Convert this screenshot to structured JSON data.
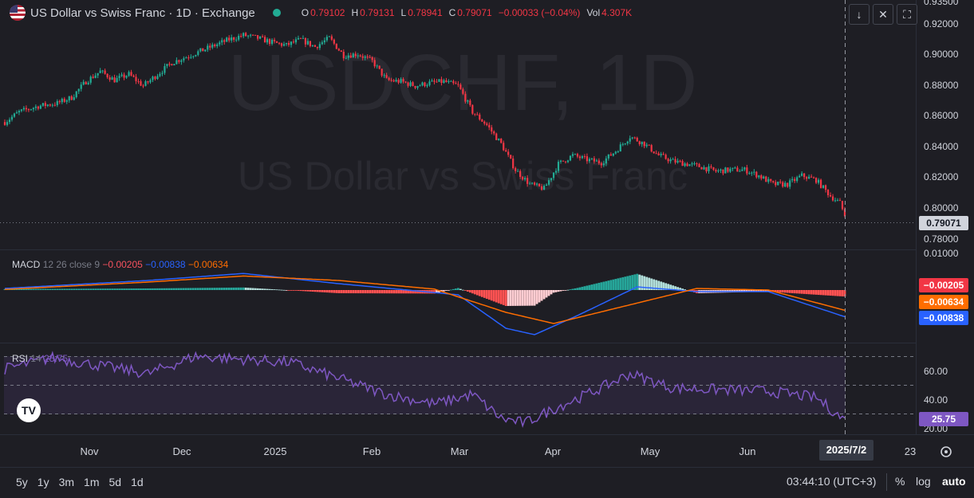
{
  "header": {
    "title": "US Dollar vs Swiss Franc · 1D · Exchange",
    "ohlc": [
      {
        "key": "O",
        "value": "0.79102"
      },
      {
        "key": "H",
        "value": "0.79131"
      },
      {
        "key": "L",
        "value": "0.78941"
      },
      {
        "key": "C",
        "value": "0.79071"
      },
      {
        "key": "",
        "value": "−0.00033 (−0.04%)"
      }
    ],
    "vol_label": "Vol",
    "vol_value": "4.307K"
  },
  "watermark": {
    "symbol": "USDCHF, 1D",
    "name": "US Dollar vs Swiss Franc"
  },
  "toolbar_icons": [
    "arrow-down-icon",
    "collapse-icon",
    "fullscreen-icon"
  ],
  "macd": {
    "label": "MACD",
    "params": "12 26 close 9",
    "hist": "−0.00205",
    "macd": "−0.00838",
    "signal": "−0.00634"
  },
  "rsi": {
    "label": "RSI",
    "params": "14",
    "value": "25.75"
  },
  "price_labels": {
    "last": "0.79071",
    "macd_hist": "−0.00205",
    "macd_signal": "−0.00634",
    "macd_line": "−0.00838",
    "rsi": "25.75"
  },
  "axis": {
    "price_ticks": [
      "0.93500",
      "0.92000",
      "0.90000",
      "0.88000",
      "0.86000",
      "0.84000",
      "0.82000",
      "0.80000",
      "0.78000"
    ],
    "macd_ticks": [
      "0.01000"
    ],
    "rsi_ticks": [
      "60.00",
      "40.00",
      "20.00"
    ],
    "time_ticks": [
      "Nov",
      "Dec",
      "2025",
      "Feb",
      "Mar",
      "Apr",
      "May",
      "Jun",
      "23"
    ],
    "crosshair_date": "2025/7/2"
  },
  "bottom": {
    "ranges": [
      "5y",
      "1y",
      "3m",
      "1m",
      "5d",
      "1d"
    ],
    "clock": "03:44:10 (UTC+3)",
    "pct": "%",
    "log": "log",
    "auto": "auto"
  },
  "colors": {
    "up": "#22ab94",
    "down": "#f23645",
    "macd": "#2962ff",
    "signal": "#ff6d00",
    "rsi": "#7e57c2",
    "bg": "#1e1e24"
  },
  "chart_data": {
    "type": "candlestick",
    "title": "US Dollar vs Swiss Franc · 1D · Exchange",
    "price_close_anchors": [
      [
        0,
        0.855
      ],
      [
        6,
        0.862
      ],
      [
        14,
        0.866
      ],
      [
        22,
        0.868
      ],
      [
        28,
        0.872
      ],
      [
        34,
        0.883
      ],
      [
        40,
        0.89
      ],
      [
        46,
        0.884
      ],
      [
        52,
        0.888
      ],
      [
        58,
        0.88
      ],
      [
        64,
        0.888
      ],
      [
        70,
        0.896
      ],
      [
        76,
        0.9
      ],
      [
        82,
        0.904
      ],
      [
        88,
        0.908
      ],
      [
        94,
        0.912
      ],
      [
        100,
        0.915
      ],
      [
        106,
        0.913
      ],
      [
        112,
        0.91
      ],
      [
        118,
        0.908
      ],
      [
        124,
        0.912
      ],
      [
        130,
        0.907
      ],
      [
        136,
        0.913
      ],
      [
        142,
        0.901
      ],
      [
        148,
        0.902
      ],
      [
        154,
        0.897
      ],
      [
        160,
        0.884
      ],
      [
        166,
        0.883
      ],
      [
        172,
        0.88
      ],
      [
        178,
        0.882
      ],
      [
        184,
        0.883
      ],
      [
        190,
        0.88
      ],
      [
        196,
        0.862
      ],
      [
        202,
        0.853
      ],
      [
        208,
        0.84
      ],
      [
        214,
        0.822
      ],
      [
        220,
        0.812
      ],
      [
        226,
        0.809
      ],
      [
        232,
        0.826
      ],
      [
        238,
        0.832
      ],
      [
        244,
        0.829
      ],
      [
        250,
        0.827
      ],
      [
        256,
        0.835
      ],
      [
        262,
        0.845
      ],
      [
        268,
        0.84
      ],
      [
        274,
        0.832
      ],
      [
        280,
        0.828
      ],
      [
        286,
        0.826
      ],
      [
        292,
        0.824
      ],
      [
        298,
        0.821
      ],
      [
        304,
        0.822
      ],
      [
        310,
        0.822
      ],
      [
        316,
        0.818
      ],
      [
        322,
        0.812
      ],
      [
        328,
        0.812
      ],
      [
        334,
        0.818
      ],
      [
        340,
        0.815
      ],
      [
        346,
        0.804
      ],
      [
        350,
        0.799
      ],
      [
        352,
        0.7907
      ]
    ],
    "macd_anchors": [
      [
        0,
        0.0005
      ],
      [
        60,
        0.003
      ],
      [
        100,
        0.0052
      ],
      [
        140,
        0.002
      ],
      [
        190,
        -0.0015
      ],
      [
        210,
        -0.012
      ],
      [
        222,
        -0.014
      ],
      [
        240,
        -0.008
      ],
      [
        265,
        0.001
      ],
      [
        290,
        -0.0005
      ],
      [
        320,
        -0.0005
      ],
      [
        352,
        -0.00838
      ]
    ],
    "signal_anchors": [
      [
        0,
        0.0002
      ],
      [
        60,
        0.0025
      ],
      [
        100,
        0.0044
      ],
      [
        140,
        0.003
      ],
      [
        180,
        0.0003
      ],
      [
        210,
        -0.007
      ],
      [
        230,
        -0.0105
      ],
      [
        260,
        -0.005
      ],
      [
        290,
        0.0005
      ],
      [
        320,
        0.0
      ],
      [
        352,
        -0.00634
      ]
    ],
    "rsi_anchors": [
      [
        0,
        58
      ],
      [
        20,
        65
      ],
      [
        40,
        60
      ],
      [
        60,
        55
      ],
      [
        80,
        66
      ],
      [
        100,
        64
      ],
      [
        120,
        62
      ],
      [
        140,
        52
      ],
      [
        160,
        42
      ],
      [
        180,
        36
      ],
      [
        196,
        42
      ],
      [
        208,
        27
      ],
      [
        218,
        24
      ],
      [
        230,
        33
      ],
      [
        250,
        46
      ],
      [
        262,
        55
      ],
      [
        280,
        46
      ],
      [
        300,
        45
      ],
      [
        320,
        44
      ],
      [
        340,
        40
      ],
      [
        352,
        25.75
      ]
    ],
    "ylim": [
      0.772,
      0.936
    ],
    "macd_ylim": [
      -0.016,
      0.012
    ],
    "rsi_ylim": [
      17,
      73
    ]
  }
}
